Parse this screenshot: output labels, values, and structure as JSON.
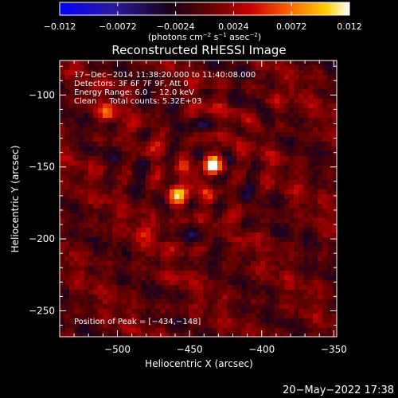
{
  "chart_data": {
    "type": "heatmap",
    "title": "Reconstructed RHESSI Image",
    "colorbar": {
      "min": -0.012,
      "max": 0.012,
      "tick_labels": [
        "−0.012",
        "−0.0072",
        "−0.0024",
        "0.0024",
        "0.0072",
        "0.012"
      ],
      "tick_values": [
        -0.012,
        -0.0072,
        -0.0024,
        0.0024,
        0.0072,
        0.012
      ],
      "unit_parts": [
        "(photons cm",
        "−2",
        " s",
        "−1",
        " asec",
        "−2",
        ")"
      ]
    },
    "xlabel": "Heliocentric X (arcsec)",
    "ylabel": "Heliocentric Y (arcsec)",
    "xlim": [
      -540,
      -348
    ],
    "ylim": [
      -268,
      -76
    ],
    "xticks": [
      {
        "value": -500,
        "label": "−500"
      },
      {
        "value": -450,
        "label": "−450"
      },
      {
        "value": -400,
        "label": "−400"
      },
      {
        "value": -350,
        "label": "−350"
      }
    ],
    "yticks": [
      {
        "value": -100,
        "label": "−100"
      },
      {
        "value": -150,
        "label": "−150"
      },
      {
        "value": -200,
        "label": "−200"
      },
      {
        "value": -250,
        "label": "−250"
      }
    ],
    "annotations": [
      "17−Dec−2014 11:38:20.000 to 11:40:08.000",
      "Detectors: 3F 6F 7F 9F, Att 0",
      "Energy Range: 6.0 − 12.0 keV",
      "Clean     Total counts: 5.32E+03"
    ],
    "peak_label": "Position of Peak = [−434,−148]",
    "sources": [
      {
        "x": -434,
        "y": -148,
        "value": 0.012
      },
      {
        "x": -458,
        "y": -170,
        "value": 0.0095
      },
      {
        "x": -508,
        "y": -112,
        "value": 0.0045
      },
      {
        "x": -478,
        "y": -193,
        "value": 0.0035
      },
      {
        "x": -392,
        "y": -105,
        "value": 0.003
      }
    ],
    "grid": false
  },
  "timestamp": "20−May−2022 17:38"
}
